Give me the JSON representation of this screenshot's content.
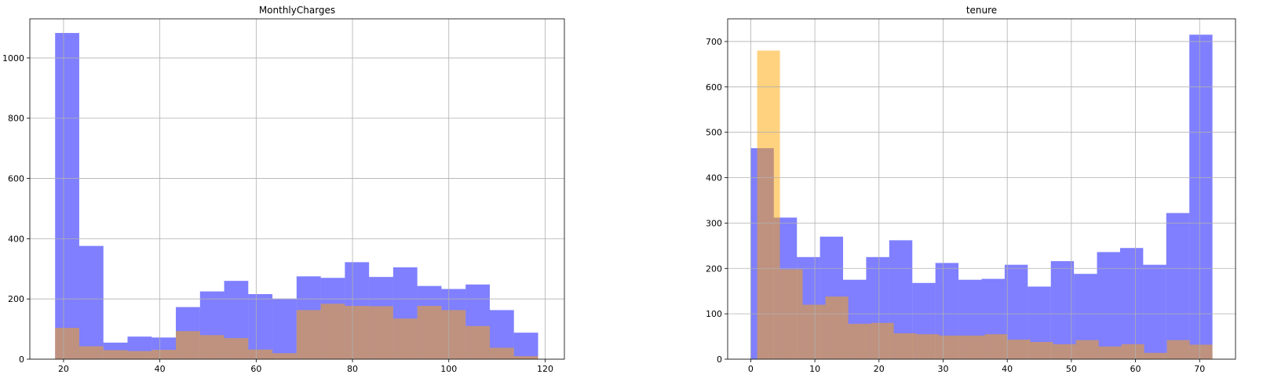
{
  "colors": {
    "series_a": "#0000ff",
    "series_b": "#ffa500",
    "grid": "#b0b0b0",
    "axes": "#000000"
  },
  "chart_data": [
    {
      "type": "bar",
      "title": "MonthlyCharges",
      "xlabel": "",
      "ylabel": "",
      "xlim": [
        13.0,
        124.0
      ],
      "ylim": [
        0,
        1130
      ],
      "xticks": [
        20,
        40,
        60,
        80,
        100,
        120
      ],
      "yticks": [
        0,
        200,
        400,
        600,
        800,
        1000
      ],
      "grid": true,
      "series": [
        {
          "color": "#0000ff",
          "opacity": 0.5,
          "bins": [
            18.25,
            23.26,
            28.28,
            33.29,
            38.31,
            43.32,
            48.34,
            53.35,
            58.36,
            63.38,
            68.39,
            73.41,
            78.42,
            83.44,
            88.45,
            93.46,
            98.48,
            103.49,
            108.51,
            113.52,
            118.54
          ],
          "values": [
            1083,
            376,
            55,
            75,
            72,
            173,
            225,
            260,
            216,
            201,
            275,
            270,
            322,
            273,
            305,
            243,
            233,
            248,
            163,
            88
          ]
        },
        {
          "color": "#ffa500",
          "opacity": 0.5,
          "bins": [
            18.25,
            23.26,
            28.28,
            33.29,
            38.31,
            43.32,
            48.34,
            53.35,
            58.36,
            63.38,
            68.39,
            73.41,
            78.42,
            83.44,
            88.45,
            93.46,
            98.48,
            103.49,
            108.51,
            113.52,
            118.54
          ],
          "values": [
            104,
            43,
            30,
            27,
            31,
            93,
            80,
            70,
            32,
            20,
            163,
            184,
            177,
            176,
            135,
            177,
            163,
            110,
            38,
            10
          ]
        }
      ]
    },
    {
      "type": "bar",
      "title": "tenure",
      "xlabel": "",
      "ylabel": "",
      "xlim": [
        -3.6,
        75.6
      ],
      "ylim": [
        0,
        750
      ],
      "xticks": [
        0,
        10,
        20,
        30,
        40,
        50,
        60,
        70
      ],
      "yticks": [
        0,
        100,
        200,
        300,
        400,
        500,
        600,
        700
      ],
      "grid": true,
      "series": [
        {
          "color": "#0000ff",
          "opacity": 0.5,
          "bins": [
            0,
            3.6,
            7.2,
            10.8,
            14.4,
            18,
            21.6,
            25.2,
            28.8,
            32.4,
            36,
            39.6,
            43.2,
            46.8,
            50.4,
            54,
            57.6,
            61.2,
            64.8,
            68.4,
            72
          ],
          "values": [
            465,
            312,
            225,
            270,
            175,
            225,
            262,
            168,
            212,
            175,
            177,
            208,
            160,
            216,
            188,
            236,
            245,
            208,
            322,
            715
          ]
        },
        {
          "color": "#ffa500",
          "opacity": 0.5,
          "bins": [
            1,
            4.55,
            8.1,
            11.65,
            15.2,
            18.75,
            22.3,
            25.85,
            29.4,
            32.95,
            36.5,
            40.05,
            43.6,
            47.15,
            50.7,
            54.25,
            57.8,
            61.35,
            64.9,
            68.45,
            72
          ],
          "values": [
            680,
            198,
            120,
            138,
            78,
            80,
            57,
            55,
            52,
            52,
            55,
            43,
            38,
            33,
            42,
            28,
            33,
            14,
            42,
            32
          ]
        }
      ]
    }
  ]
}
